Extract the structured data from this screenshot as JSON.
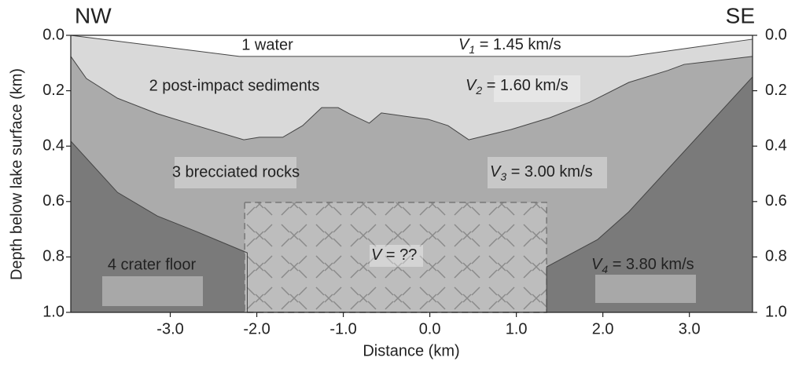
{
  "chart_data": {
    "type": "cross-section",
    "corner_left": "NW",
    "corner_right": "SE",
    "xlabel": "Distance (km)",
    "ylabel": "Depth below lake surface (km)",
    "xlim": [
      -4.15,
      3.73
    ],
    "ylim": [
      0,
      1.0
    ],
    "xticks": [
      {
        "value": -3,
        "label": "-3.0"
      },
      {
        "value": -2,
        "label": "-2.0"
      },
      {
        "value": -1,
        "label": "-1.0"
      },
      {
        "value": 0,
        "label": "0.0"
      },
      {
        "value": 1,
        "label": "1.0"
      },
      {
        "value": 2,
        "label": "2.0"
      },
      {
        "value": 3,
        "label": "3.0"
      }
    ],
    "yticks": [
      {
        "value": 0,
        "label": "0.0"
      },
      {
        "value": 0.2,
        "label": "0.2"
      },
      {
        "value": 0.4,
        "label": "0.4"
      },
      {
        "value": 0.6,
        "label": "0.6"
      },
      {
        "value": 0.8,
        "label": "0.8"
      },
      {
        "value": 1.0,
        "label": "1.0"
      }
    ],
    "layers": [
      {
        "label": "1 water",
        "color": "#ffffff",
        "velocity": {
          "symbol": "V",
          "index": "1",
          "text": " = 1.45  km/s"
        }
      },
      {
        "label": "2 post-impact sediments",
        "color": "#d9d9d9",
        "velocity": {
          "symbol": "V",
          "index": "2",
          "text": " = 1.60 km/s"
        }
      },
      {
        "label": "3 brecciated rocks",
        "color": "#ababab",
        "velocity": {
          "symbol": "V",
          "index": "3",
          "text": " = 3.00 km/s"
        }
      },
      {
        "label": "4 crater floor",
        "color": "#7a7a7a",
        "velocity": {
          "symbol": "V",
          "index": "4",
          "text": " = 3.80 km/s"
        }
      }
    ],
    "boundaries": [
      {
        "x": [
          -4.15,
          -2.2,
          2.3,
          3.73
        ],
        "values": [
          0.0,
          0.076,
          0.076,
          0.014
        ]
      },
      {
        "x": [
          -4.15,
          -3.97,
          -3.61,
          -3.15,
          -2.7,
          -2.15,
          -1.97,
          -1.7,
          -1.47,
          -1.25,
          -1.06,
          -0.93,
          -0.7,
          -0.56,
          -0.29,
          -0.02,
          0.21,
          0.45,
          0.57,
          0.94,
          1.39,
          1.85,
          2.3,
          2.75,
          2.94,
          3.73
        ],
        "values": [
          0.076,
          0.156,
          0.227,
          0.283,
          0.326,
          0.377,
          0.368,
          0.368,
          0.326,
          0.261,
          0.261,
          0.283,
          0.317,
          0.28,
          0.292,
          0.303,
          0.326,
          0.377,
          0.368,
          0.34,
          0.297,
          0.241,
          0.17,
          0.127,
          0.105,
          0.076
        ]
      },
      {
        "x": [
          -4.15,
          -3.61,
          -3.15,
          -2.7,
          -2.11,
          -2.11,
          1.35,
          1.35,
          1.94,
          2.3,
          3.73
        ],
        "values": [
          0.382,
          0.567,
          0.652,
          0.708,
          0.785,
          1.0,
          1.0,
          0.836,
          0.737,
          0.637,
          0.15
        ]
      }
    ],
    "unknown_zone": {
      "xlim": [
        -2.14,
        1.35
      ],
      "ylim": [
        0.603,
        1.0
      ],
      "symbol": "V",
      "text": " = ??"
    }
  }
}
